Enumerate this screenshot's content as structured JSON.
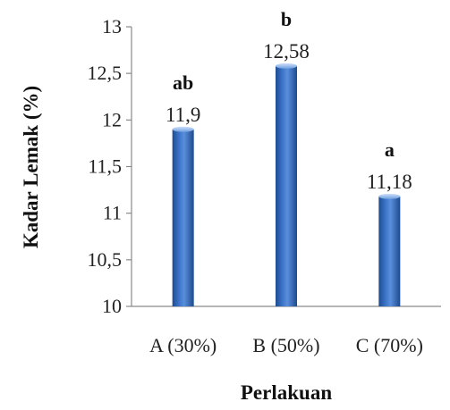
{
  "chart_data": {
    "type": "bar",
    "categories": [
      "A (30%)",
      "B (50%)",
      "C (70%)"
    ],
    "values": [
      11.9,
      12.58,
      11.18
    ],
    "value_labels": [
      "11,9",
      "12,58",
      "11,18"
    ],
    "significance_labels": [
      "ab",
      "b",
      "a"
    ],
    "title": "",
    "xlabel": "Perlakuan",
    "ylabel": "Kadar Lemak (%)",
    "ylim": [
      10,
      13
    ],
    "yticks": [
      10,
      10.5,
      11,
      11.5,
      12,
      12.5,
      13
    ],
    "ytick_labels": [
      "10",
      "10,5",
      "11",
      "11,5",
      "12",
      "12,5",
      "13"
    ],
    "grid": false,
    "legend": "none",
    "bar_color": "#2f64b4"
  }
}
